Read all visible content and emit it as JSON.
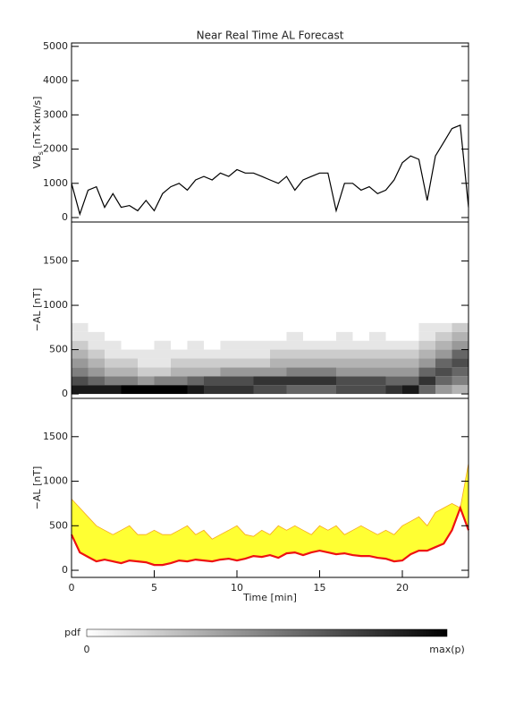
{
  "chart_data": [
    {
      "type": "line",
      "title": "Near Real Time AL Forecast",
      "ylabel": "VB",
      "ylabel_sub": "s",
      "ylabel_unit": " [nT×km/s]",
      "x": [
        0,
        0.5,
        1,
        1.5,
        2,
        2.5,
        3,
        3.5,
        4,
        4.5,
        5,
        5.5,
        6,
        6.5,
        7,
        7.5,
        8,
        8.5,
        9,
        9.5,
        10,
        10.5,
        11,
        11.5,
        12,
        12.5,
        13,
        13.5,
        14,
        14.5,
        15,
        15.5,
        16,
        16.5,
        17,
        17.5,
        18,
        18.5,
        19,
        19.5,
        20,
        20.5,
        21,
        21.5,
        22,
        22.5,
        23,
        23.5,
        24
      ],
      "values": [
        1000,
        100,
        800,
        900,
        300,
        700,
        300,
        350,
        200,
        500,
        200,
        700,
        900,
        1000,
        800,
        1100,
        1200,
        1100,
        1300,
        1200,
        1400,
        1300,
        1300,
        1200,
        1100,
        1000,
        1200,
        800,
        1100,
        1200,
        1300,
        1300,
        200,
        1000,
        1000,
        800,
        900,
        700,
        800,
        1100,
        1600,
        1800,
        1700,
        500,
        1800,
        2200,
        2600,
        2700,
        300
      ],
      "color": "#000000",
      "xlim": [
        0,
        24
      ],
      "ylim": [
        -130,
        5100
      ],
      "yticks": [
        0,
        1000,
        2000,
        3000,
        4000,
        5000
      ]
    },
    {
      "type": "heatmap",
      "ylabel": "−AL [nT]",
      "x_bins": [
        0,
        1,
        2,
        3,
        4,
        5,
        6,
        7,
        8,
        9,
        10,
        11,
        12,
        13,
        14,
        15,
        16,
        17,
        18,
        19,
        20,
        21,
        22,
        23,
        24
      ],
      "y_bins": [
        0,
        100,
        200,
        300,
        400,
        500,
        600,
        700,
        800
      ],
      "values": [
        [
          0.9,
          0.7,
          0.5,
          0.4,
          0.3,
          0.2,
          0.1,
          0.1
        ],
        [
          0.9,
          0.6,
          0.4,
          0.3,
          0.2,
          0.1,
          0.1,
          0
        ],
        [
          0.9,
          0.5,
          0.3,
          0.2,
          0.1,
          0.1,
          0,
          0
        ],
        [
          1,
          0.5,
          0.3,
          0.2,
          0.1,
          0,
          0,
          0
        ],
        [
          1,
          0.4,
          0.2,
          0.1,
          0.1,
          0,
          0,
          0
        ],
        [
          1,
          0.5,
          0.2,
          0.1,
          0.1,
          0.1,
          0,
          0
        ],
        [
          1,
          0.5,
          0.3,
          0.2,
          0.1,
          0,
          0,
          0
        ],
        [
          0.9,
          0.6,
          0.3,
          0.2,
          0.1,
          0.1,
          0,
          0
        ],
        [
          0.8,
          0.7,
          0.3,
          0.2,
          0.1,
          0,
          0,
          0
        ],
        [
          0.8,
          0.7,
          0.4,
          0.2,
          0.1,
          0.1,
          0,
          0
        ],
        [
          0.8,
          0.7,
          0.4,
          0.2,
          0.1,
          0.1,
          0,
          0
        ],
        [
          0.7,
          0.8,
          0.4,
          0.2,
          0.1,
          0.1,
          0,
          0
        ],
        [
          0.7,
          0.8,
          0.4,
          0.3,
          0.2,
          0.1,
          0,
          0
        ],
        [
          0.6,
          0.8,
          0.5,
          0.3,
          0.2,
          0.1,
          0.1,
          0
        ],
        [
          0.6,
          0.8,
          0.5,
          0.3,
          0.2,
          0.1,
          0,
          0
        ],
        [
          0.6,
          0.8,
          0.5,
          0.3,
          0.2,
          0.1,
          0,
          0
        ],
        [
          0.7,
          0.7,
          0.4,
          0.3,
          0.2,
          0.1,
          0.1,
          0
        ],
        [
          0.7,
          0.7,
          0.4,
          0.3,
          0.2,
          0.1,
          0,
          0
        ],
        [
          0.7,
          0.7,
          0.4,
          0.3,
          0.2,
          0.1,
          0.1,
          0
        ],
        [
          0.8,
          0.6,
          0.4,
          0.3,
          0.2,
          0.1,
          0,
          0
        ],
        [
          0.9,
          0.6,
          0.4,
          0.3,
          0.2,
          0.1,
          0,
          0
        ],
        [
          0.6,
          0.8,
          0.6,
          0.4,
          0.3,
          0.2,
          0.1,
          0.1
        ],
        [
          0.4,
          0.6,
          0.7,
          0.6,
          0.4,
          0.3,
          0.2,
          0.1
        ],
        [
          0.3,
          0.5,
          0.6,
          0.7,
          0.6,
          0.4,
          0.3,
          0.2
        ]
      ],
      "xlim": [
        0,
        24
      ],
      "ylim": [
        -50,
        1940
      ],
      "yticks": [
        0,
        500,
        1000,
        1500
      ]
    },
    {
      "type": "band",
      "ylabel": "−AL [nT]",
      "xlabel": "Time [min]",
      "x": [
        0,
        0.5,
        1,
        1.5,
        2,
        2.5,
        3,
        3.5,
        4,
        4.5,
        5,
        5.5,
        6,
        6.5,
        7,
        7.5,
        8,
        8.5,
        9,
        9.5,
        10,
        10.5,
        11,
        11.5,
        12,
        12.5,
        13,
        13.5,
        14,
        14.5,
        15,
        15.5,
        16,
        16.5,
        17,
        17.5,
        18,
        18.5,
        19,
        19.5,
        20,
        20.5,
        21,
        21.5,
        22,
        22.5,
        23,
        23.5,
        24
      ],
      "band": {
        "color": "#ffff33",
        "edge": "#f5a623",
        "values": [
          800,
          700,
          600,
          500,
          450,
          400,
          450,
          500,
          400,
          400,
          450,
          400,
          400,
          450,
          500,
          400,
          450,
          350,
          400,
          450,
          500,
          400,
          380,
          450,
          400,
          500,
          450,
          500,
          450,
          400,
          500,
          450,
          500,
          400,
          450,
          500,
          450,
          400,
          450,
          400,
          500,
          550,
          600,
          500,
          650,
          700,
          750,
          700,
          1200
        ]
      },
      "line": {
        "color": "#ee1111",
        "values": [
          400,
          200,
          150,
          100,
          120,
          100,
          80,
          110,
          100,
          90,
          60,
          60,
          80,
          110,
          100,
          120,
          110,
          100,
          120,
          130,
          110,
          130,
          160,
          150,
          170,
          140,
          190,
          200,
          170,
          200,
          220,
          200,
          180,
          190,
          170,
          160,
          160,
          140,
          130,
          100,
          110,
          180,
          220,
          220,
          260,
          300,
          450,
          700,
          450
        ]
      },
      "xlim": [
        0,
        24
      ],
      "ylim": [
        -80,
        1930
      ],
      "yticks": [
        0,
        500,
        1000,
        1500
      ],
      "xticks": [
        0,
        5,
        10,
        15,
        20
      ]
    }
  ],
  "colorbar": {
    "label": "pdf",
    "min_label": "0",
    "max_label": "max(p)"
  }
}
